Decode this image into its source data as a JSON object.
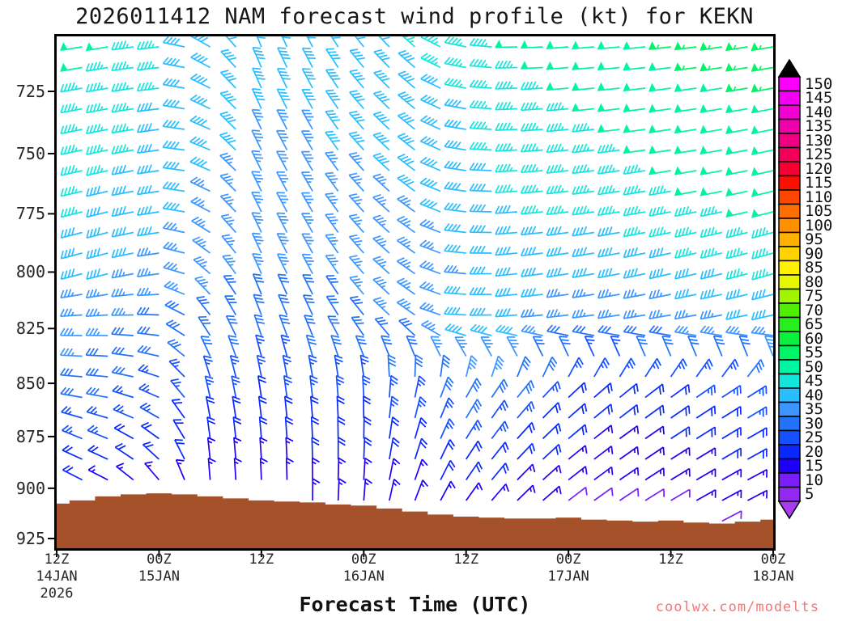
{
  "title": "2026011412 NAM forecast wind profile (kt) for KEKN",
  "xlabel": "Forecast Time (UTC)",
  "watermark": "coolwx.com/modelts",
  "colors": {
    "background": "#ffffff",
    "frame": "#000000",
    "terrain": "#a5522b",
    "axis_text": "#262626",
    "watermark_text": "#f87474",
    "colorbar_arrow_top": "#000000",
    "colorbar_arrow_bottom": "#a83cf0"
  },
  "chart_data": {
    "type": "wind-barb-time-height",
    "model": "NAM",
    "init_time": "2026011412",
    "station": "KEKN",
    "units": "kt",
    "y_axis": {
      "scale": "log-pressure",
      "tick_labels": [
        725,
        750,
        775,
        800,
        825,
        850,
        875,
        900,
        925
      ],
      "range_hpa": [
        703,
        929.5
      ]
    },
    "x_axis": {
      "tick_interval_hours": 12,
      "hours_range": [
        0,
        84
      ],
      "ticks": [
        {
          "time": "12Z",
          "date": "14JAN",
          "year": "2026"
        },
        {
          "time": "00Z",
          "date": "15JAN"
        },
        {
          "time": "12Z"
        },
        {
          "time": "00Z",
          "date": "16JAN"
        },
        {
          "time": "12Z"
        },
        {
          "time": "00Z",
          "date": "17JAN"
        },
        {
          "time": "12Z"
        },
        {
          "time": "00Z",
          "date": "18JAN"
        }
      ]
    },
    "colorbar": {
      "labels_top_to_bottom": [
        150,
        145,
        140,
        135,
        130,
        125,
        120,
        115,
        110,
        105,
        100,
        95,
        90,
        85,
        80,
        75,
        70,
        65,
        60,
        55,
        50,
        45,
        40,
        35,
        30,
        25,
        20,
        15,
        10,
        5
      ],
      "speed_colors_5_to_150": [
        "#9428f0",
        "#7a1ef8",
        "#1e00fa",
        "#0828ff",
        "#1450ff",
        "#2272fa",
        "#3c96ff",
        "#28beff",
        "#14e6dc",
        "#00f5a0",
        "#00f566",
        "#0af03c",
        "#28ee1e",
        "#50ee00",
        "#a0f500",
        "#e6f800",
        "#fff000",
        "#ffd200",
        "#ffb000",
        "#ff9000",
        "#ff6e00",
        "#ff4600",
        "#fa0f00",
        "#f50032",
        "#f0005a",
        "#ee0082",
        "#ee00aa",
        "#f000d2",
        "#f400f4",
        "#fa00fa"
      ]
    },
    "barb_field": {
      "note": "control grid estimated from plot; speeds kt, directions deg (from), bilinear in time and log-p",
      "control_times_hours": [
        0,
        6,
        12,
        18,
        24,
        30,
        36,
        42,
        48,
        54,
        60,
        66,
        72,
        78,
        84
      ],
      "control_levels_hpa": [
        703,
        725,
        750,
        775,
        800,
        825,
        850,
        875,
        900,
        925
      ],
      "speed_kt": [
        [
          50,
          48,
          45,
          40,
          38,
          38,
          40,
          43,
          45,
          48,
          50,
          52,
          53,
          55,
          55
        ],
        [
          48,
          46,
          43,
          40,
          38,
          38,
          39,
          41,
          43,
          46,
          48,
          50,
          51,
          52,
          53
        ],
        [
          46,
          44,
          41,
          38,
          37,
          37,
          38,
          39,
          41,
          44,
          46,
          47,
          49,
          50,
          51
        ],
        [
          44,
          41,
          39,
          37,
          35,
          35,
          36,
          37,
          39,
          42,
          43,
          44,
          46,
          47,
          48
        ],
        [
          40,
          38,
          35,
          34,
          33,
          33,
          34,
          35,
          37,
          39,
          38,
          38,
          40,
          42,
          44
        ],
        [
          36,
          34,
          31,
          31,
          30,
          30,
          31,
          33,
          40,
          42,
          32,
          31,
          33,
          36,
          38
        ],
        [
          31,
          29,
          27,
          25,
          24,
          25,
          26,
          28,
          34,
          30,
          24,
          22,
          24,
          26,
          28
        ],
        [
          26,
          24,
          21,
          19,
          18,
          19,
          20,
          22,
          24,
          22,
          18,
          17,
          18,
          20,
          22
        ],
        [
          17,
          16,
          15,
          15,
          15,
          16,
          15,
          16,
          17,
          16,
          14,
          13,
          14,
          15,
          16
        ],
        [
          8,
          8,
          9,
          10,
          11,
          10,
          9,
          8,
          8,
          8,
          7,
          6,
          7,
          8,
          8
        ]
      ],
      "direction_deg": [
        [
          262,
          261,
          264,
          300,
          338,
          333,
          322,
          312,
          282,
          269,
          266,
          265,
          264,
          262,
          261
        ],
        [
          260,
          260,
          263,
          296,
          336,
          332,
          320,
          310,
          280,
          268,
          265,
          264,
          262,
          261,
          260
        ],
        [
          258,
          258,
          262,
          292,
          334,
          330,
          318,
          308,
          279,
          267,
          264,
          262,
          261,
          260,
          258
        ],
        [
          256,
          256,
          261,
          298,
          334,
          330,
          318,
          306,
          277,
          266,
          263,
          261,
          259,
          258,
          256
        ],
        [
          255,
          255,
          262,
          310,
          336,
          332,
          319,
          305,
          275,
          264,
          261,
          259,
          257,
          256,
          254
        ],
        [
          270,
          270,
          275,
          325,
          340,
          336,
          322,
          305,
          272,
          266,
          264,
          262,
          261,
          260,
          258
        ],
        [
          275,
          276,
          290,
          345,
          350,
          352,
          356,
          370,
          388,
          398,
          406,
          410,
          413,
          416,
          418
        ],
        [
          292,
          292,
          305,
          352,
          355,
          357,
          361,
          376,
          392,
          402,
          410,
          414,
          417,
          419,
          421
        ],
        [
          298,
          298,
          322,
          356,
          358,
          360,
          364,
          380,
          395,
          405,
          412,
          416,
          419,
          421,
          423
        ],
        [
          300,
          300,
          336,
          358,
          360,
          362,
          366,
          383,
          397,
          407,
          414,
          418,
          421,
          423,
          425
        ]
      ]
    },
    "terrain": {
      "time_step_hours": 3,
      "surface_pressure_hpa": [
        907.5,
        906,
        904,
        903,
        902.5,
        903,
        904,
        905,
        906,
        906.5,
        907,
        908,
        908.5,
        910,
        911.5,
        913,
        914,
        914.5,
        915,
        915,
        914.5,
        915.5,
        916,
        916.5,
        916,
        917,
        917.5,
        916.5,
        915.5
      ]
    }
  }
}
